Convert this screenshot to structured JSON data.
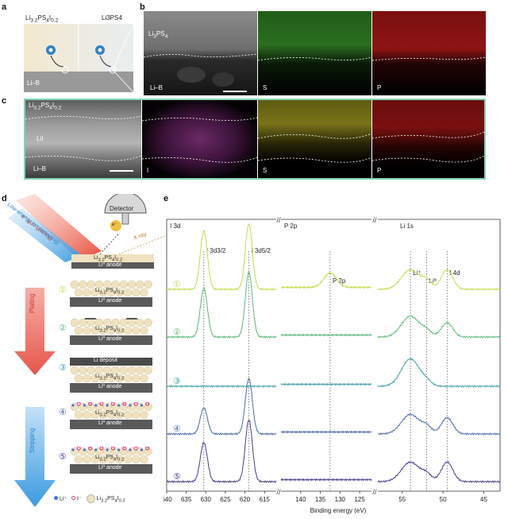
{
  "panels": {
    "a": "a",
    "b": "b",
    "c": "c",
    "d": "d",
    "e": "e"
  },
  "panel_a": {
    "left_label": "Li3.2PS4I0.2",
    "right_label": "Li3PS4",
    "bottom_label": "Li–B"
  },
  "panel_b": {
    "sem_top": "Li3PS4",
    "sem_bottom": "Li–B",
    "map1": "S",
    "map2": "P"
  },
  "panel_c": {
    "sem_top": "Li3.2PS4I0.2",
    "sem_mid": "LiI",
    "sem_bottom": "Li–B",
    "map1": "I",
    "map2": "S",
    "map3": "P"
  },
  "panel_d": {
    "detector": "Detector",
    "beam_plating": "e⁻ gun (plating)",
    "beam_stripping": "Low-energy ion (stripping)",
    "xray": "X-ray",
    "electron": "e⁻",
    "top_layer": "Li3.2PS4I0.2",
    "top_anode": "Liº anode",
    "plating": "Plating",
    "stripping": "Stripping",
    "stages": [
      {
        "num": "①",
        "electrolyte": "Li3.2PS4I0.2",
        "anode": "Liº anode"
      },
      {
        "num": "②",
        "electrolyte": "Li3.2PS4I0.2",
        "anode": "Liº anode"
      },
      {
        "num": "③",
        "deposit": "Li deposit",
        "electrolyte": "Li3.2PS4I0.2",
        "anode": "Liº anode"
      },
      {
        "num": "④",
        "electrolyte": "Li3.2PS4I0.2",
        "anode": "Liº anode"
      },
      {
        "num": "⑤",
        "electrolyte": "Li3.2PS4I0.2",
        "anode": "Liº anode"
      }
    ],
    "legend": {
      "li": "Li⁺",
      "i": "I⁻",
      "lpsi": "Li3.2PS4I0.2"
    }
  },
  "chart_data": {
    "type": "line",
    "xlabel": "Binding energy (eV)",
    "x_ticks": [
      640,
      635,
      630,
      625,
      620,
      615,
      140,
      135,
      130,
      125,
      55,
      50,
      45
    ],
    "regions": [
      {
        "name": "I 3d",
        "xlim": [
          640,
          612
        ],
        "peaks": [
          {
            "label": "I 3d3/2",
            "x": 630.5
          },
          {
            "label": "I 3d5/2",
            "x": 619.0
          }
        ]
      },
      {
        "name": "P 2p",
        "xlim": [
          145,
          122
        ],
        "peaks": [
          {
            "label": "P 2p",
            "x": 132.5
          }
        ]
      },
      {
        "name": "Li 1s",
        "xlim": [
          58,
          43
        ],
        "peaks": [
          {
            "label": "Li⁺",
            "x": 54.0
          },
          {
            "label": "Liº",
            "x": 52.0
          },
          {
            "label": "I 4d",
            "x": 49.5
          }
        ]
      }
    ],
    "series": [
      {
        "name": "①",
        "color": "#c9d94a",
        "I_3d": [
          0.9,
          1.0
        ],
        "P_2p": 0.22,
        "Li_1s": [
          0.3,
          0.12,
          0.3
        ]
      },
      {
        "name": "②",
        "color": "#5cb87a",
        "I_3d": [
          0.75,
          1.0
        ],
        "P_2p": 0.0,
        "Li_1s": [
          0.32,
          0.08,
          0.22
        ]
      },
      {
        "name": "③",
        "color": "#3f9fa5",
        "I_3d": [
          0.0,
          0.0
        ],
        "P_2p": 0.0,
        "Li_1s": [
          0.42,
          0.06,
          0.0
        ]
      },
      {
        "name": "④",
        "color": "#4a6aa5",
        "I_3d": [
          0.4,
          0.85
        ],
        "P_2p": 0.0,
        "Li_1s": [
          0.3,
          0.1,
          0.25
        ]
      },
      {
        "name": "⑤",
        "color": "#4b3a8a",
        "I_3d": [
          0.6,
          0.95
        ],
        "P_2p": 0.0,
        "Li_1s": [
          0.3,
          0.1,
          0.3
        ]
      }
    ],
    "colors": {
      "li_dot": "#3a7bd5",
      "i_dot": "#e0448a",
      "lpsi": "#f0e2c0"
    }
  }
}
